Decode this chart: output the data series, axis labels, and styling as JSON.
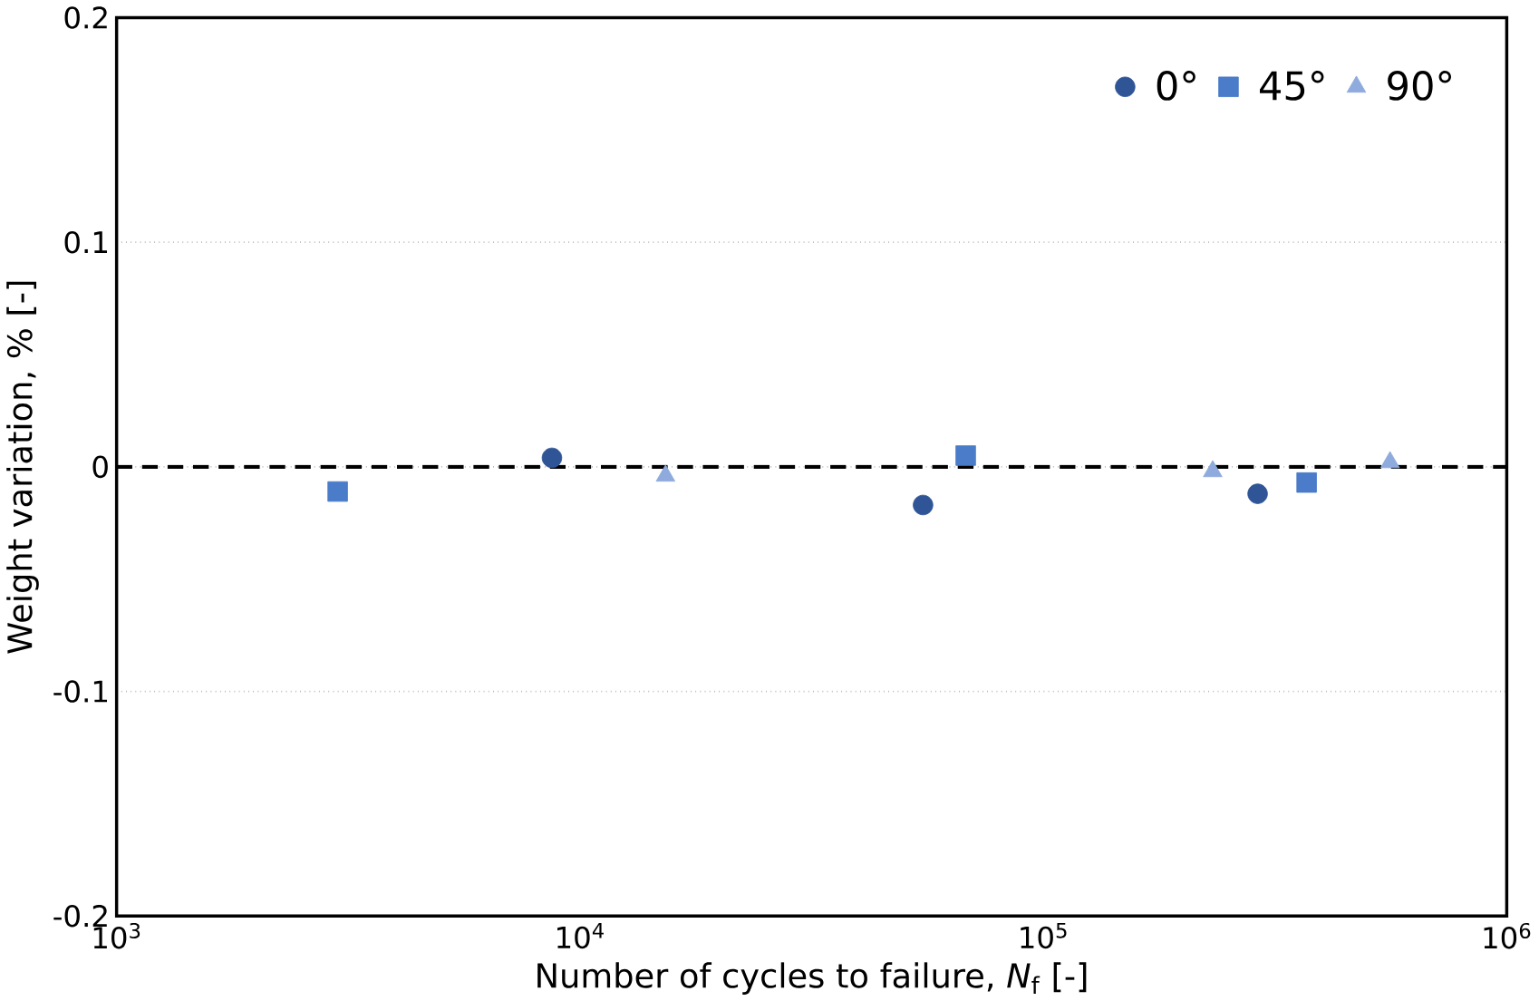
{
  "chart_data": {
    "type": "scatter",
    "xlabel": "Number of cycles to failure, *N*$_{f}$ [-]",
    "ylabel": "Weight variation, % [-]",
    "log": "x",
    "xlim": [
      1000,
      1000000
    ],
    "xticks": [
      {
        "value": 1000,
        "label": "10$^{3}$"
      },
      {
        "value": 10000,
        "label": "10$^{4}$"
      },
      {
        "value": 100000,
        "label": "10$^{5}$"
      },
      {
        "value": 1000000,
        "label": "10$^{6}$"
      }
    ],
    "ylim": [
      -0.2,
      0.2
    ],
    "yticks": [
      -0.2,
      -0.1,
      0,
      0.1,
      0.2
    ],
    "grid": "y",
    "legend": "top right",
    "series": [
      {
        "name": "0°",
        "color": "#2f5597",
        "marker": "circle",
        "x": [
          8700,
          55000,
          290000
        ],
        "values": [
          0.004,
          -0.017,
          -0.012
        ]
      },
      {
        "name": "45°",
        "color": "#4a7cc9",
        "marker": "square",
        "x": [
          3000,
          68000,
          370000
        ],
        "values": [
          -0.011,
          0.005,
          -0.007
        ]
      },
      {
        "name": "90°",
        "color": "#8faadc",
        "marker": "triangle",
        "x": [
          15300,
          232000,
          560000
        ],
        "values": [
          -0.004,
          -0.002,
          0.002
        ]
      }
    ],
    "ref_lines": [
      {
        "axis": "y",
        "value": 0,
        "color": "#000000",
        "line_style": "dashed"
      }
    ]
  }
}
